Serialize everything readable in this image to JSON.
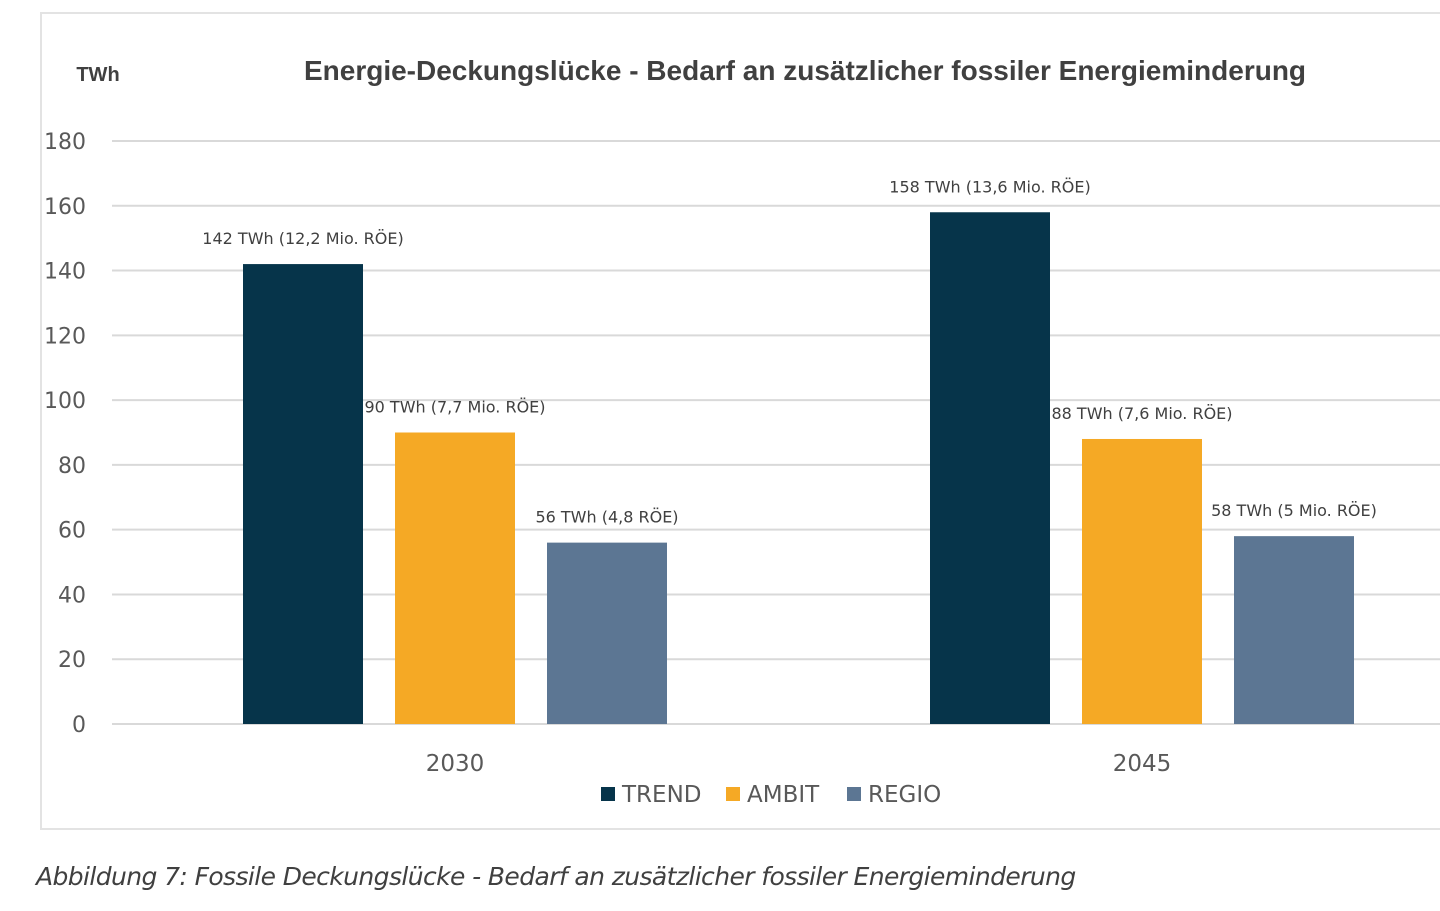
{
  "caption": "Abbildung 7: Fossile Deckungslücke - Bedarf an zusätzlicher fossiler Energieminderung",
  "chart_data": {
    "type": "bar",
    "title": "Energie-Deckungslücke - Bedarf an zusätzlicher fossiler Energieminderung",
    "unit_label": "TWh",
    "xlabel": "",
    "ylabel": "",
    "ylim": [
      0,
      180
    ],
    "yticks": [
      0,
      20,
      40,
      60,
      80,
      100,
      120,
      140,
      160,
      180
    ],
    "grid": true,
    "legend_position": "bottom",
    "categories": [
      "2030",
      "2045"
    ],
    "series": [
      {
        "name": "TREND",
        "color": "#06344a",
        "values": [
          142,
          158
        ],
        "labels": [
          "142 TWh (12,2 Mio. RÖE)",
          "158 TWh (13,6 Mio. RÖE)"
        ]
      },
      {
        "name": "AMBIT",
        "color": "#f5a925",
        "values": [
          90,
          88
        ],
        "labels": [
          "90 TWh (7,7 Mio. RÖE)",
          "88 TWh (7,6 Mio. RÖE)"
        ]
      },
      {
        "name": "REGIO",
        "color": "#5c7693",
        "values": [
          56,
          58
        ],
        "labels": [
          "56 TWh (4,8 RÖE)",
          "58 TWh (5 Mio. RÖE)"
        ]
      }
    ]
  }
}
